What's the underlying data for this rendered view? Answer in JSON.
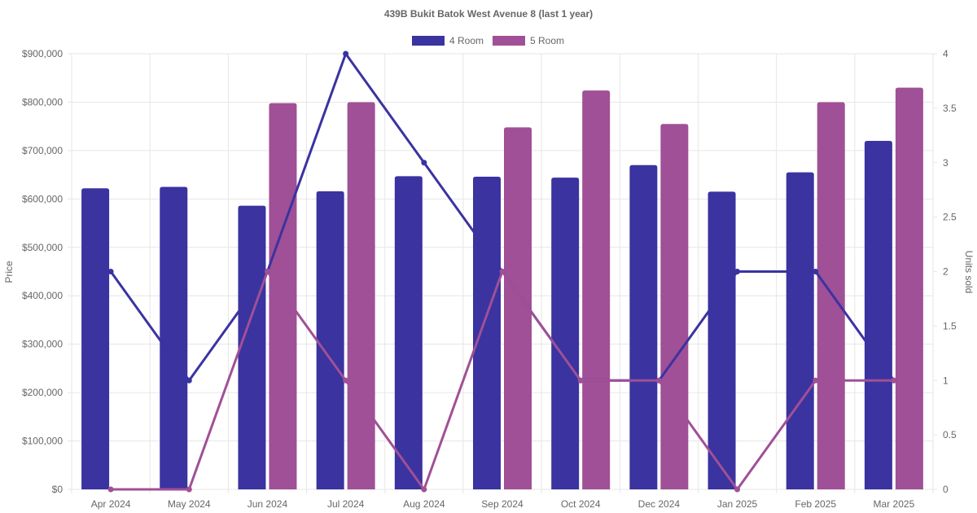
{
  "chart_data": {
    "type": "bar",
    "title": "439B Bukit Batok West Avenue 8 (last 1 year)",
    "categories": [
      "Apr 2024",
      "May 2024",
      "Jun 2024",
      "Jul 2024",
      "Aug 2024",
      "Sep 2024",
      "Oct 2024",
      "Dec 2024",
      "Jan 2025",
      "Feb 2025",
      "Mar 2025"
    ],
    "y_left": {
      "label": "Price",
      "min": 0,
      "max": 900000,
      "ticks": [
        "$0",
        "$100,000",
        "$200,000",
        "$300,000",
        "$400,000",
        "$500,000",
        "$600,000",
        "$700,000",
        "$800,000",
        "$900,000"
      ]
    },
    "y_right": {
      "label": "Units sold",
      "min": 0,
      "max": 4,
      "ticks": [
        "0",
        "0.5",
        "1",
        "1.5",
        "2",
        "2.5",
        "3",
        "3.5",
        "4"
      ]
    },
    "legend": {
      "position": "top"
    },
    "series": [
      {
        "name": "4 Room",
        "color": "#3a33a0",
        "price": [
          622000,
          625000,
          586000,
          616000,
          647000,
          646000,
          644000,
          670000,
          615000,
          655000,
          720000
        ],
        "units_sold": [
          2,
          1,
          2,
          4,
          3,
          2,
          1,
          1,
          2,
          2,
          1
        ]
      },
      {
        "name": "5 Room",
        "color": "#a05096",
        "price": [
          null,
          null,
          798000,
          800000,
          null,
          748000,
          824000,
          755000,
          null,
          800000,
          830000
        ],
        "units_sold": [
          0,
          0,
          2,
          1,
          0,
          2,
          1,
          1,
          0,
          1,
          1
        ]
      }
    ]
  }
}
